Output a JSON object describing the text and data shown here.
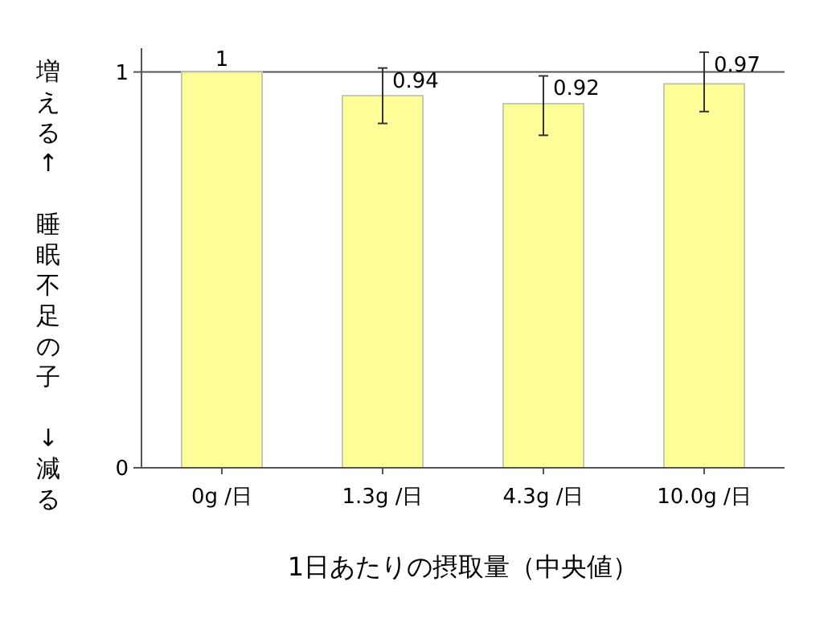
{
  "chart_data": {
    "type": "bar",
    "xlabel": "1日あたりの摂取量（中央値）",
    "ylabel": "増える↑　睡眠不足の子　↓減る",
    "categories": [
      "0g /日",
      "1.3g /日",
      "4.3g /日",
      "10.0g /日"
    ],
    "values": [
      1,
      0.94,
      0.92,
      0.97
    ],
    "errors": [
      null,
      [
        0.87,
        1.01
      ],
      [
        0.84,
        0.99
      ],
      [
        0.9,
        1.05
      ]
    ],
    "color": "#ffff99",
    "ylim": [
      0,
      1.06
    ],
    "yticks": [
      0,
      1
    ],
    "grid": "y",
    "data_labels": true
  }
}
